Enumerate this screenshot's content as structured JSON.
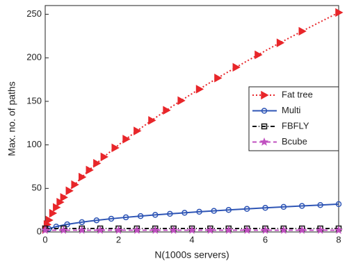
{
  "chart_data": {
    "type": "line",
    "xlabel": "N(1000s servers)",
    "ylabel": "Max. no. of paths",
    "xlim": [
      0,
      8
    ],
    "ylim": [
      0,
      260
    ],
    "xticks": [
      0,
      2,
      4,
      6,
      8
    ],
    "yticks": [
      0,
      50,
      100,
      150,
      200,
      250
    ],
    "legend": "right",
    "series": [
      {
        "name": "Fat tree",
        "color": "#e8262a",
        "dash": "2,3",
        "marker": "triangle-right",
        "x": [
          0.01,
          0.05,
          0.1,
          0.2,
          0.3,
          0.4,
          0.5,
          0.65,
          0.8,
          1.0,
          1.2,
          1.4,
          1.6,
          1.9,
          2.2,
          2.5,
          2.9,
          3.3,
          3.7,
          4.2,
          4.7,
          5.2,
          5.8,
          6.4,
          7.0,
          8.0
        ],
        "values": [
          2.9,
          8.6,
          13.6,
          21.5,
          28.2,
          34.2,
          39.7,
          47.3,
          54.3,
          63,
          71.1,
          78.8,
          86.2,
          96.6,
          106.6,
          116,
          128.1,
          139.7,
          150.8,
          164,
          176.8,
          189.1,
          203.4,
          217.2,
          230.5,
          252
        ]
      },
      {
        "name": "Multi",
        "color": "#2e55b5",
        "dash": "",
        "marker": "circle",
        "x": [
          0.1,
          0.3,
          0.6,
          1,
          1.4,
          1.8,
          2.2,
          2.6,
          3,
          3.4,
          3.8,
          4.2,
          4.6,
          5,
          5.5,
          6,
          6.5,
          7,
          7.5,
          8
        ],
        "values": [
          3.6,
          6.2,
          8.8,
          11.3,
          13.4,
          15.2,
          16.8,
          18.2,
          19.6,
          20.8,
          22,
          23.2,
          24.2,
          25.3,
          26.5,
          27.7,
          28.8,
          29.9,
          30.9,
          32
        ]
      },
      {
        "name": "FBFLY",
        "color": "#111111",
        "dash": "6,3,1,3",
        "marker": "square",
        "x": [
          0,
          0.5,
          1,
          1.5,
          2,
          2.5,
          3,
          3.5,
          4,
          4.5,
          5,
          5.5,
          6,
          6.5,
          7,
          7.5,
          8
        ],
        "values": [
          4,
          4,
          4,
          4,
          4,
          4,
          4,
          4,
          4,
          4,
          4,
          4,
          4,
          4,
          4,
          4,
          4
        ]
      },
      {
        "name": "Bcube",
        "color": "#c050c0",
        "dash": "6,4",
        "marker": "star",
        "x": [
          0,
          0.5,
          1,
          1.5,
          2,
          2.5,
          3,
          3.5,
          4,
          4.5,
          5,
          5.5,
          6,
          6.5,
          7,
          7.5,
          8
        ],
        "values": [
          2,
          2,
          2,
          2,
          2,
          2,
          2,
          2,
          2,
          2,
          2,
          2,
          2,
          2,
          2,
          2,
          2
        ]
      }
    ]
  }
}
